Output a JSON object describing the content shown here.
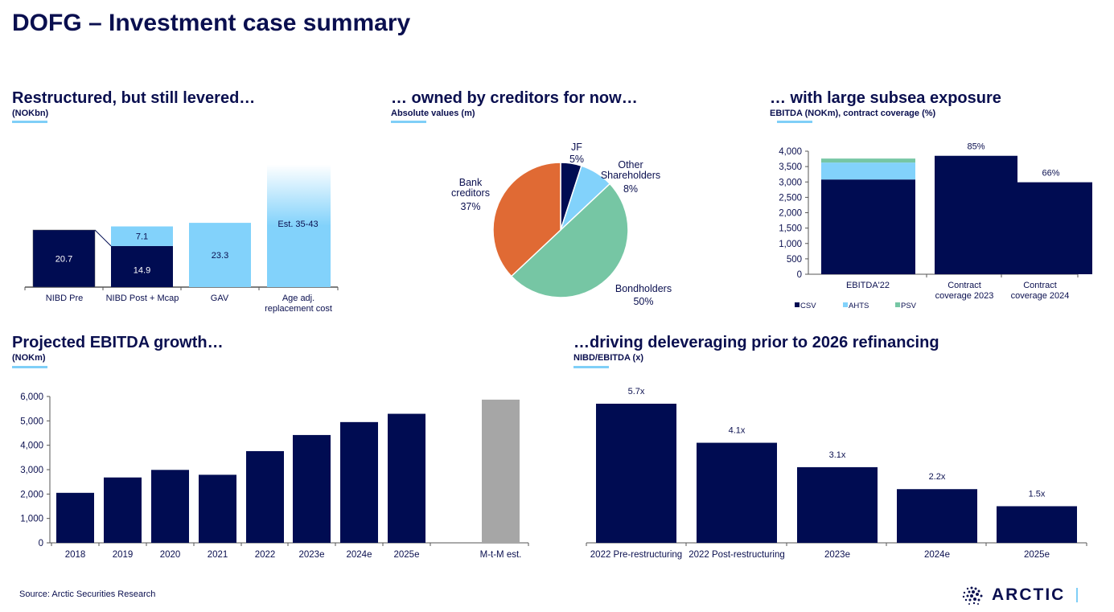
{
  "page": {
    "title": "DOFG – Investment case summary",
    "source": "Source: Arctic Securities Research",
    "logo_text": "ARCTIC"
  },
  "colors": {
    "navy": "#000c52",
    "light_blue": "#82d2fb",
    "green": "#76c6a4",
    "orange": "#e06a34",
    "grey": "#a6a6a6"
  },
  "chart_data": [
    {
      "type": "bar",
      "title": "Restructured, but still levered…",
      "subtitle": "(NOKbn)",
      "categories": [
        "NIBD Pre",
        "NIBD Post + Mcap",
        "GAV",
        "Age adj. replacement cost"
      ],
      "series": [
        {
          "values": [
            20.7,
            14.9,
            23.3,
            null
          ]
        },
        {
          "values": [
            null,
            7.1,
            null,
            null
          ]
        }
      ],
      "data_labels": [
        "20.7",
        "14.9",
        "7.1",
        "23.3",
        "Est. 35-43"
      ],
      "range_estimate": [
        35,
        43
      ]
    },
    {
      "type": "pie",
      "title": "… owned by creditors for now…",
      "subtitle": "Absolute values (m)",
      "slices": [
        {
          "label": "JF",
          "value": 5,
          "text": "5%"
        },
        {
          "label": "Other Shareholders",
          "value": 8,
          "text": "8%"
        },
        {
          "label": "Bondholders",
          "value": 50,
          "text": "50%"
        },
        {
          "label": "Bank creditors",
          "value": 37,
          "text": "37%"
        }
      ]
    },
    {
      "type": "bar",
      "title": "… with large subsea exposure",
      "subtitle": "EBITDA (NOKm), contract coverage (%)",
      "categories": [
        "EBITDA'22",
        "Contract coverage 2023",
        "Contract coverage 2024"
      ],
      "series": [
        {
          "name": "CSV",
          "values": [
            3080,
            3850,
            2990
          ]
        },
        {
          "name": "AHTS",
          "values": [
            550,
            null,
            null
          ]
        },
        {
          "name": "PSV",
          "values": [
            130,
            null,
            null
          ]
        }
      ],
      "data_labels": [
        "",
        "85%",
        "66%"
      ],
      "ylim": [
        0,
        4000
      ],
      "yticks": [
        "0",
        "500",
        "1,000",
        "1,500",
        "2,000",
        "2,500",
        "3,000",
        "3,500",
        "4,000"
      ],
      "legend": "bottom-left"
    },
    {
      "type": "bar",
      "title": "Projected EBITDA growth…",
      "subtitle": "(NOKm)",
      "categories": [
        "2018",
        "2019",
        "2020",
        "2021",
        "2022",
        "2023e",
        "2024e",
        "2025e",
        "M-t-M est."
      ],
      "values": [
        2050,
        2680,
        2990,
        2790,
        3760,
        4420,
        4950,
        5290,
        5870
      ],
      "ylim": [
        0,
        6000
      ],
      "yticks": [
        "0",
        "1,000",
        "2,000",
        "3,000",
        "4,000",
        "5,000",
        "6,000"
      ]
    },
    {
      "type": "bar",
      "title": "…driving deleveraging prior to 2026 refinancing",
      "subtitle": "NIBD/EBITDA (x)",
      "categories": [
        "2022 Pre-restructuring",
        "2022 Post-restructuring",
        "2023e",
        "2024e",
        "2025e"
      ],
      "values": [
        5.7,
        4.1,
        3.1,
        2.2,
        1.5
      ],
      "data_labels": [
        "5.7x",
        "4.1x",
        "3.1x",
        "2.2x",
        "1.5x"
      ]
    }
  ]
}
